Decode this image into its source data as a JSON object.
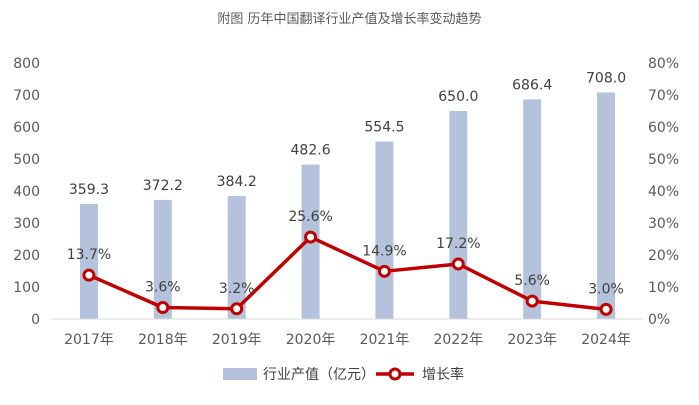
{
  "chart_data": {
    "type": "bar",
    "title": "附图  历年中国翻译行业产值及增长率变动趋势",
    "categories": [
      "2017年",
      "2018年",
      "2019年",
      "2020年",
      "2021年",
      "2022年",
      "2023年",
      "2024年"
    ],
    "series": [
      {
        "name": "行业产值（亿元）",
        "type": "bar",
        "axis": "left",
        "color": "#b4c2dc",
        "values": [
          359.3,
          372.2,
          384.2,
          482.6,
          554.5,
          650.0,
          686.4,
          708.0
        ],
        "labels": [
          "359.3",
          "372.2",
          "384.2",
          "482.6",
          "554.5",
          "650.0",
          "686.4",
          "708.0"
        ]
      },
      {
        "name": "增长率",
        "type": "line",
        "axis": "right",
        "color": "#c00000",
        "values": [
          13.7,
          3.6,
          3.2,
          25.6,
          14.9,
          17.2,
          5.6,
          3.0
        ],
        "labels": [
          "13.7%",
          "3.6%",
          "3.2%",
          "25.6%",
          "14.9%",
          "17.2%",
          "5.6%",
          "3.0%"
        ]
      }
    ],
    "y_left": {
      "lim": [
        0,
        800
      ],
      "ticks": [
        "0",
        "100",
        "200",
        "300",
        "400",
        "500",
        "600",
        "700",
        "800"
      ]
    },
    "y_right": {
      "lim": [
        0,
        80
      ],
      "ticks": [
        "0%",
        "10%",
        "20%",
        "30%",
        "40%",
        "50%",
        "60%",
        "70%",
        "80%"
      ]
    },
    "grid": false,
    "legend": "bottom"
  }
}
